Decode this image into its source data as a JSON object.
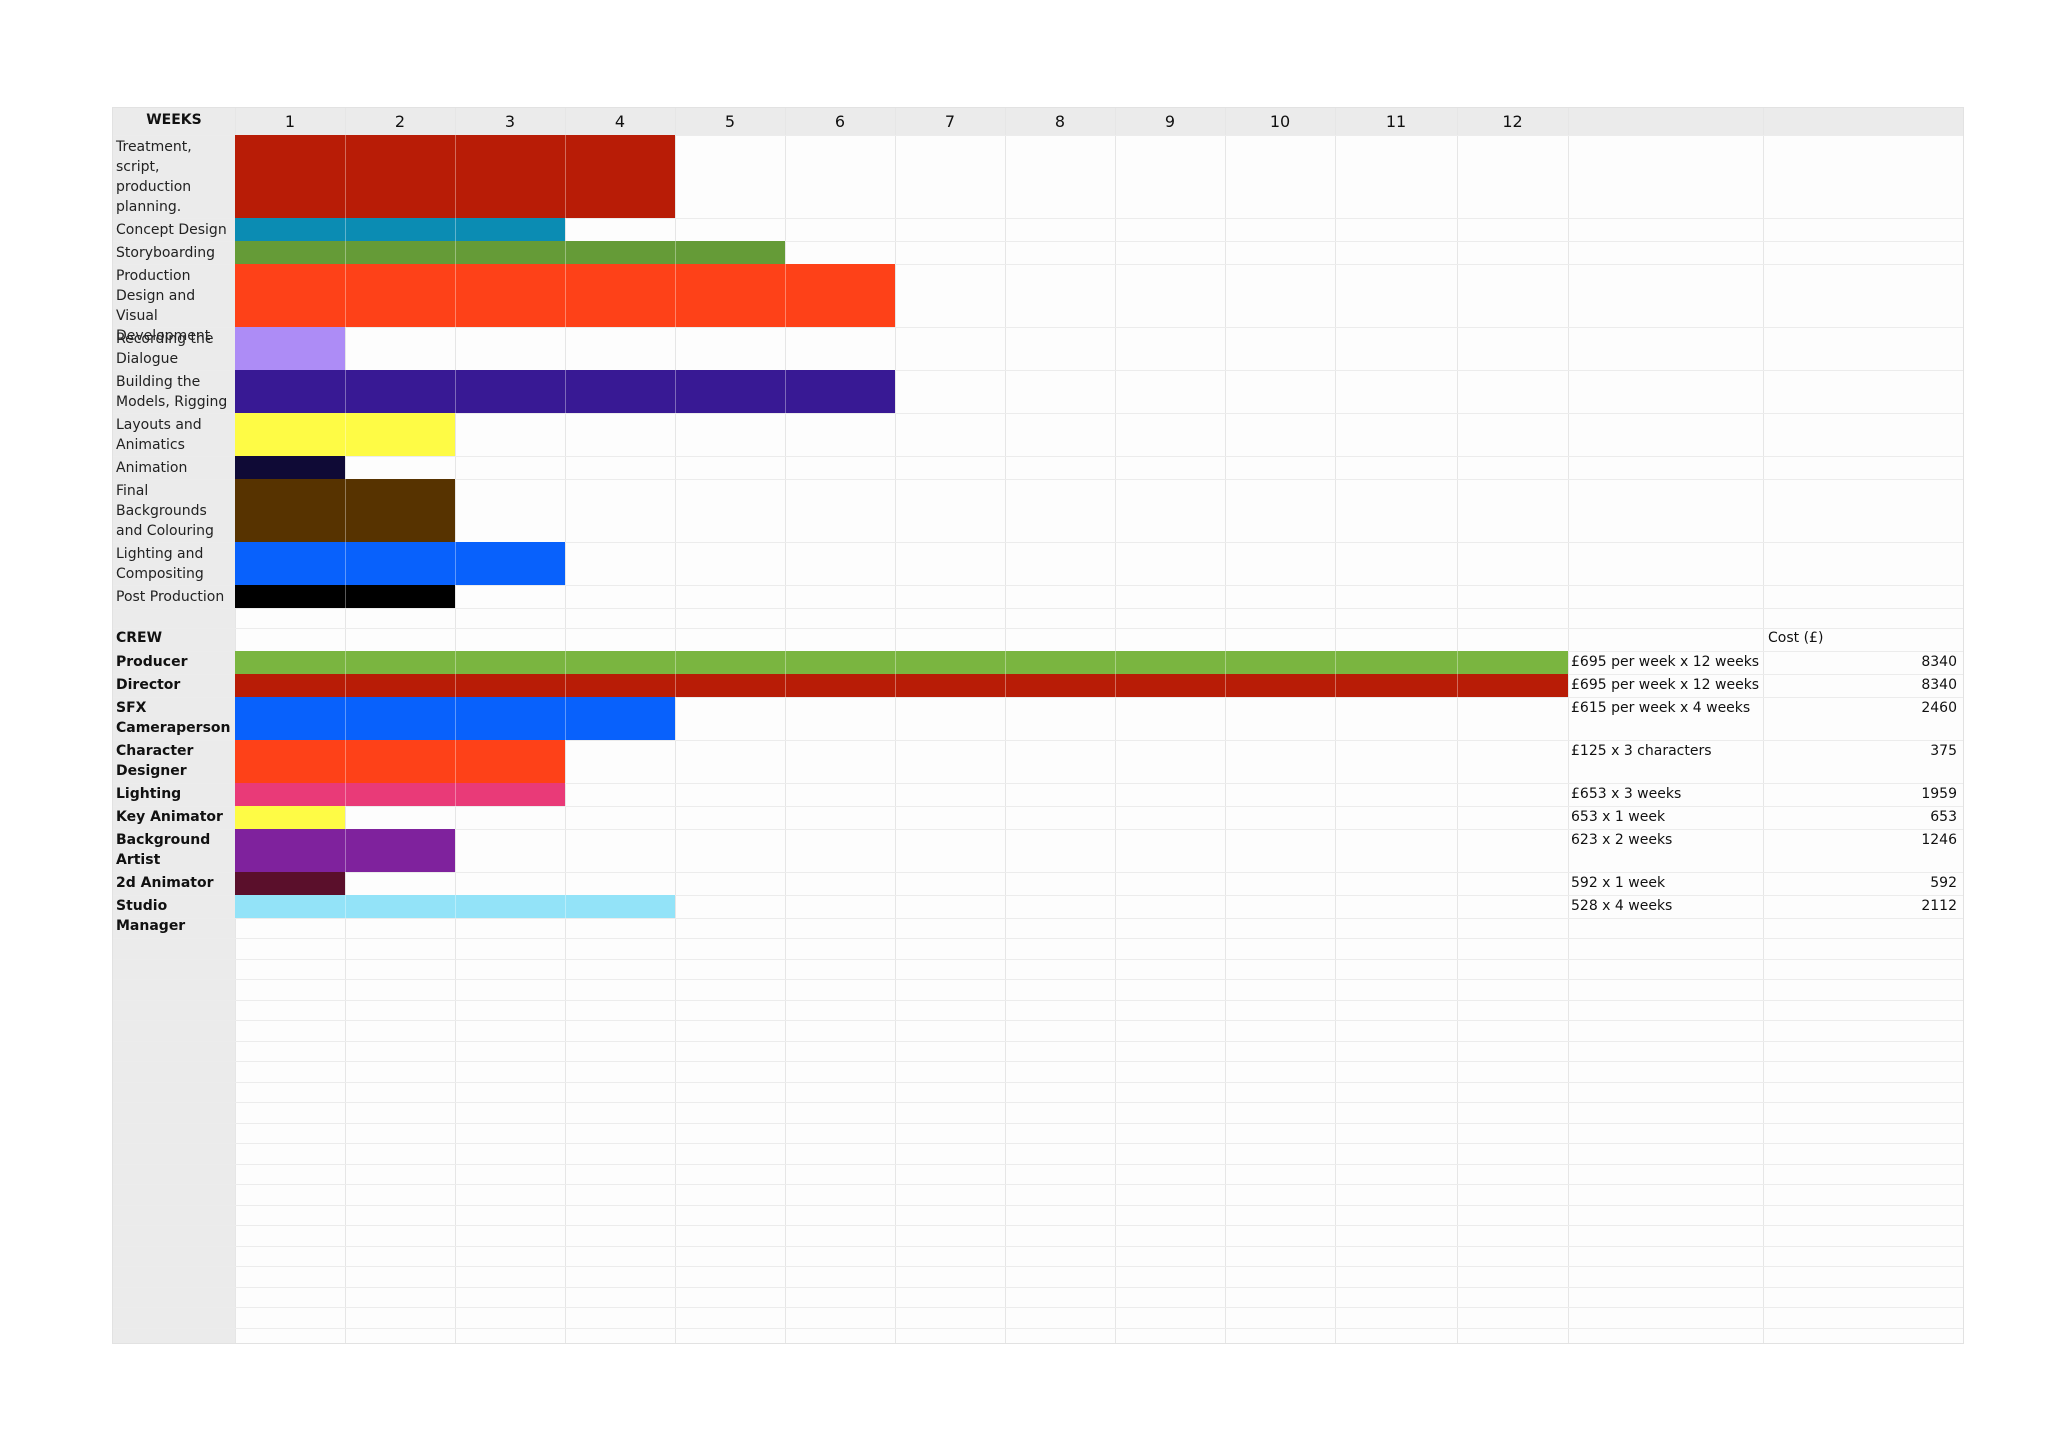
{
  "header": {
    "weeks_label": "WEEKS",
    "weeks": [
      "1",
      "2",
      "3",
      "4",
      "5",
      "6",
      "7",
      "8",
      "9",
      "10",
      "11",
      "12"
    ]
  },
  "tasks": [
    {
      "label": "Treatment, script, production planning.",
      "weeks": 4,
      "color": "#b81c06"
    },
    {
      "label": "Concept Design",
      "weeks": 3,
      "color": "#0b8cb3"
    },
    {
      "label": "Storyboarding",
      "weeks": 5,
      "color": "#659b37"
    },
    {
      "label": "Production Design and Visual Development",
      "weeks": 6,
      "color": "#fe4118"
    },
    {
      "label": "Recording the Dialogue",
      "weeks": 1,
      "color": "#ad8cf6"
    },
    {
      "label": "Building the Models, Rigging",
      "weeks": 6,
      "color": "#381994"
    },
    {
      "label": "Layouts and Animatics",
      "weeks": 2,
      "color": "#fefb45"
    },
    {
      "label": "Animation",
      "weeks": 1,
      "color": "#0f0a36"
    },
    {
      "label": "Final Backgrounds and Colouring",
      "weeks": 2,
      "color": "#573300"
    },
    {
      "label": "Lighting and Compositing",
      "weeks": 3,
      "color": "#0861fc"
    },
    {
      "label": "Post Production",
      "weeks": 2,
      "color": "#000000"
    }
  ],
  "crew_section": {
    "label": "CREW",
    "cost_header": "Cost (£)"
  },
  "crew": [
    {
      "label": "Producer",
      "weeks": 12,
      "color": "#7ab540",
      "note": "£695 per week x 12 weeks",
      "cost": "8340"
    },
    {
      "label": "Director",
      "weeks": 12,
      "color": "#b81c06",
      "note": "£695 per week x 12 weeks",
      "cost": "8340"
    },
    {
      "label": "SFX Cameraperson",
      "weeks": 4,
      "color": "#0861fc",
      "note": "£615 per week x 4 weeks",
      "cost": "2460"
    },
    {
      "label": "Character Designer",
      "weeks": 3,
      "color": "#fe4118",
      "note": "£125 x 3 characters",
      "cost": "375"
    },
    {
      "label": "Lighting",
      "weeks": 3,
      "color": "#e93a78",
      "note": "£653 x 3 weeks",
      "cost": "1959"
    },
    {
      "label": "Key Animator",
      "weeks": 1,
      "color": "#fefb45",
      "note": "653 x 1 week",
      "cost": "653"
    },
    {
      "label": "Background Artist",
      "weeks": 2,
      "color": "#7f229d",
      "note": "623 x 2 weeks",
      "cost": "1246"
    },
    {
      "label": "2d  Animator",
      "weeks": 1,
      "color": "#5a0f2b",
      "note": "592 x 1 week",
      "cost": "592"
    },
    {
      "label": "Studio Manager",
      "weeks": 4,
      "color": "#93e3f8",
      "note": "528 x 4 weeks",
      "cost": "2112"
    }
  ]
}
